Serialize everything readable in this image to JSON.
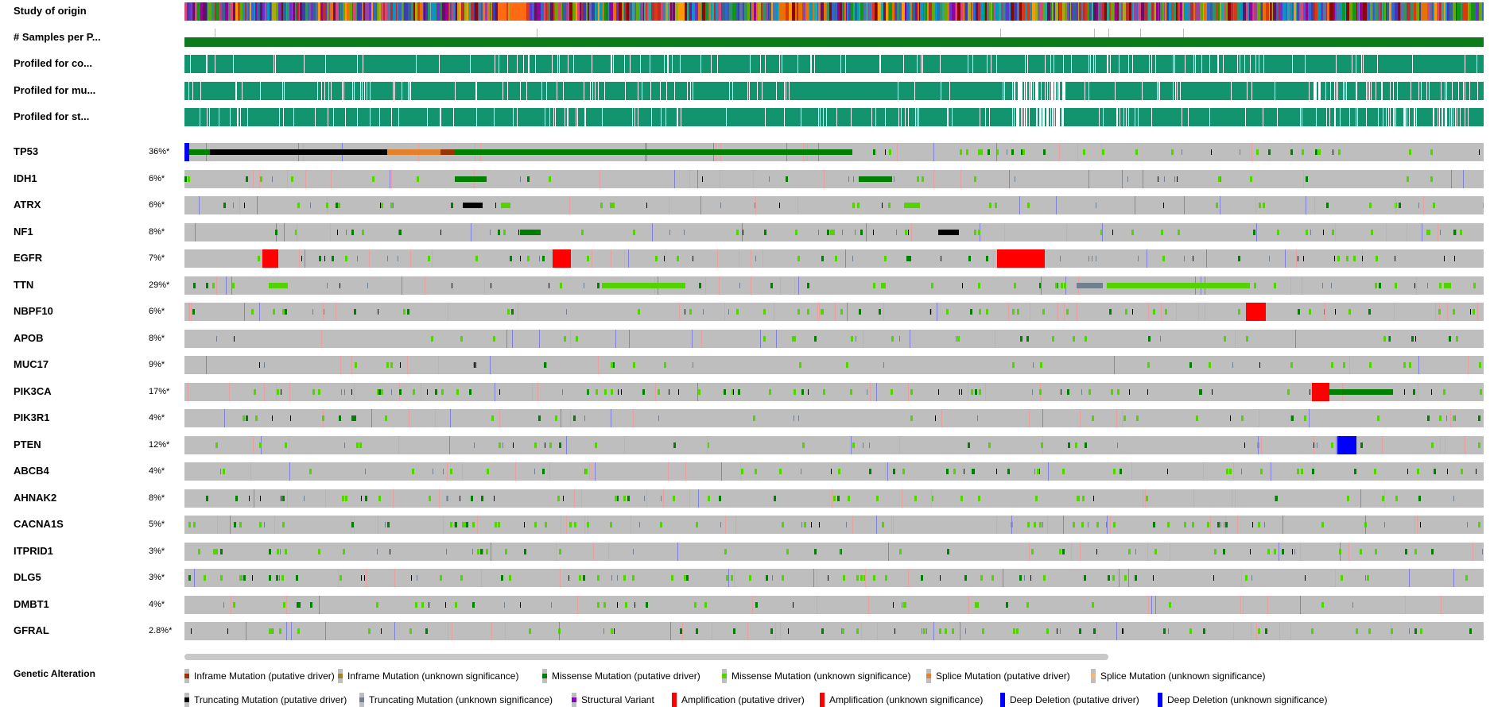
{
  "clinical_tracks": [
    {
      "key": "study",
      "label": "Study of origin"
    },
    {
      "key": "samples",
      "label": "# Samples per P..."
    },
    {
      "key": "cna",
      "label": "Profiled for co..."
    },
    {
      "key": "mut",
      "label": "Profiled for mu..."
    },
    {
      "key": "sv",
      "label": "Profiled for st..."
    }
  ],
  "genes": [
    {
      "name": "TP53",
      "pct": "36%*"
    },
    {
      "name": "IDH1",
      "pct": "6%*"
    },
    {
      "name": "ATRX",
      "pct": "6%*"
    },
    {
      "name": "NF1",
      "pct": "8%*"
    },
    {
      "name": "EGFR",
      "pct": "7%*"
    },
    {
      "name": "TTN",
      "pct": "29%*"
    },
    {
      "name": "NBPF10",
      "pct": "6%*"
    },
    {
      "name": "APOB",
      "pct": "8%*"
    },
    {
      "name": "MUC17",
      "pct": "9%*"
    },
    {
      "name": "PIK3CA",
      "pct": "17%*"
    },
    {
      "name": "PIK3R1",
      "pct": "4%*"
    },
    {
      "name": "PTEN",
      "pct": "12%*"
    },
    {
      "name": "ABCB4",
      "pct": "4%*"
    },
    {
      "name": "AHNAK2",
      "pct": "8%*"
    },
    {
      "name": "CACNA1S",
      "pct": "5%*"
    },
    {
      "name": "ITPRID1",
      "pct": "3%*"
    },
    {
      "name": "DLG5",
      "pct": "3%*"
    },
    {
      "name": "DMBT1",
      "pct": "4%*"
    },
    {
      "name": "GFRAL",
      "pct": "2.8%*"
    }
  ],
  "legend": {
    "title": "Genetic Alteration",
    "items": [
      {
        "label": "Inframe Mutation (putative driver)",
        "color": "#993404",
        "kind": "mut"
      },
      {
        "label": "Inframe Mutation (unknown significance)",
        "color": "#a68028",
        "kind": "mut"
      },
      {
        "label": "Missense Mutation (putative driver)",
        "color": "#008000",
        "kind": "mut"
      },
      {
        "label": "Missense Mutation (unknown significance)",
        "color": "#53d400",
        "kind": "mut"
      },
      {
        "label": "Splice Mutation (putative driver)",
        "color": "#e5802b",
        "kind": "mut"
      },
      {
        "label": "Splice Mutation (unknown significance)",
        "color": "#f0b87b",
        "kind": "mut"
      },
      {
        "label": "Truncating Mutation (putative driver)",
        "color": "#000000",
        "kind": "mut"
      },
      {
        "label": "Truncating Mutation (unknown significance)",
        "color": "#708090",
        "kind": "mut"
      },
      {
        "label": "Structural Variant",
        "color": "#8b00c9",
        "kind": "mut"
      },
      {
        "label": "Amplification (putative driver)",
        "color": "#ff0000",
        "kind": "full"
      },
      {
        "label": "Amplification (unknown significance)",
        "color": "#ff0000",
        "kind": "full"
      },
      {
        "label": "Deep Deletion (putative driver)",
        "color": "#0000ff",
        "kind": "full"
      },
      {
        "label": "Deep Deletion (unknown significance)",
        "color": "#0000ff",
        "kind": "full"
      }
    ]
  },
  "colors": {
    "track_bg": "#bebebe",
    "profiled": "#12946f",
    "samples_bar": "#0b7b1c",
    "amplification": "#ff0000",
    "deep_deletion": "#0000ff",
    "missense_driver": "#008000",
    "missense_vus": "#53d400",
    "truncating_driver": "#000000",
    "truncating_vus": "#708090",
    "splice_driver": "#e5802b",
    "inframe_driver": "#993404",
    "structural_variant": "#8b00c9"
  }
}
